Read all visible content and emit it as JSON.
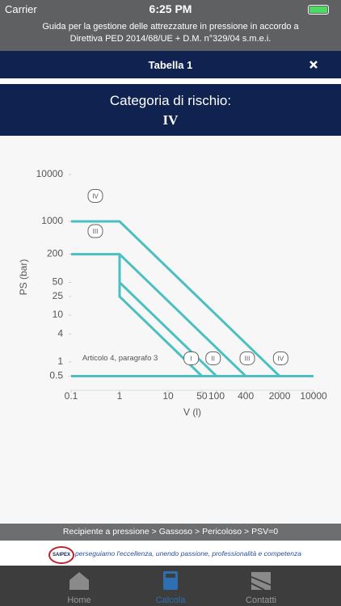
{
  "status": {
    "carrier": "Carrier",
    "time": "6:25 PM"
  },
  "header": {
    "lines": [
      "Guida per la gestione delle attrezzature in pressione in accordo a",
      "Direttiva PED 2014/68/UE + D.M. n°329/04 s.m.e.i."
    ]
  },
  "nav": {
    "title": "Tabella 1"
  },
  "result": {
    "label": "Categoria di rischio:",
    "value": "IV"
  },
  "chart_data": {
    "type": "line",
    "log_x": true,
    "log_y": true,
    "color": "#4cbfc1",
    "xlabel": "V (l)",
    "ylabel": "PS (bar)",
    "xlim": [
      0.1,
      10000
    ],
    "xticks": [
      0.1,
      1,
      10,
      50,
      100,
      400,
      2000,
      10000
    ],
    "ylim": [
      0.25,
      10000
    ],
    "yticks": [
      0.5,
      1,
      4,
      10,
      25,
      50,
      200,
      1000,
      10000
    ],
    "series": [
      {
        "x": [
          1,
          1,
          50
        ],
        "values": [
          50,
          25,
          0.5
        ]
      },
      {
        "x": [
          1,
          1,
          100
        ],
        "values": [
          200,
          50,
          0.5
        ]
      },
      {
        "x": [
          0.1,
          1,
          400
        ],
        "values": [
          200,
          200,
          0.5
        ]
      },
      {
        "x": [
          0.1,
          1,
          2000
        ],
        "values": [
          1000,
          1000,
          0.5
        ]
      },
      {
        "x": [
          0.1,
          10000
        ],
        "values": [
          0.5,
          0.5
        ]
      }
    ],
    "annotations": [
      {
        "text": "IV",
        "x": 0.316,
        "y": 3500,
        "badge": true
      },
      {
        "text": "III",
        "x": 0.316,
        "y": 620,
        "badge": true
      },
      {
        "text": "Articolo 4, paragrafo 3",
        "x": 0.17,
        "y": 1.2,
        "badge": false
      },
      {
        "text": "I",
        "x": 30,
        "y": 1.2,
        "badge": true
      },
      {
        "text": "II",
        "x": 85,
        "y": 1.2,
        "badge": true
      },
      {
        "text": "III",
        "x": 430,
        "y": 1.2,
        "badge": true
      },
      {
        "text": "IV",
        "x": 2100,
        "y": 1.2,
        "badge": true
      }
    ]
  },
  "breadcrumb": "Recipiente a pressione > Gassoso > Pericoloso > PSV=0",
  "slogan": "perseguiamo l'eccellenza, unendo passione, professionalità e competenza",
  "logo": "SAIPEX",
  "tabs": [
    "Home",
    "Calcola",
    "Contatti"
  ]
}
